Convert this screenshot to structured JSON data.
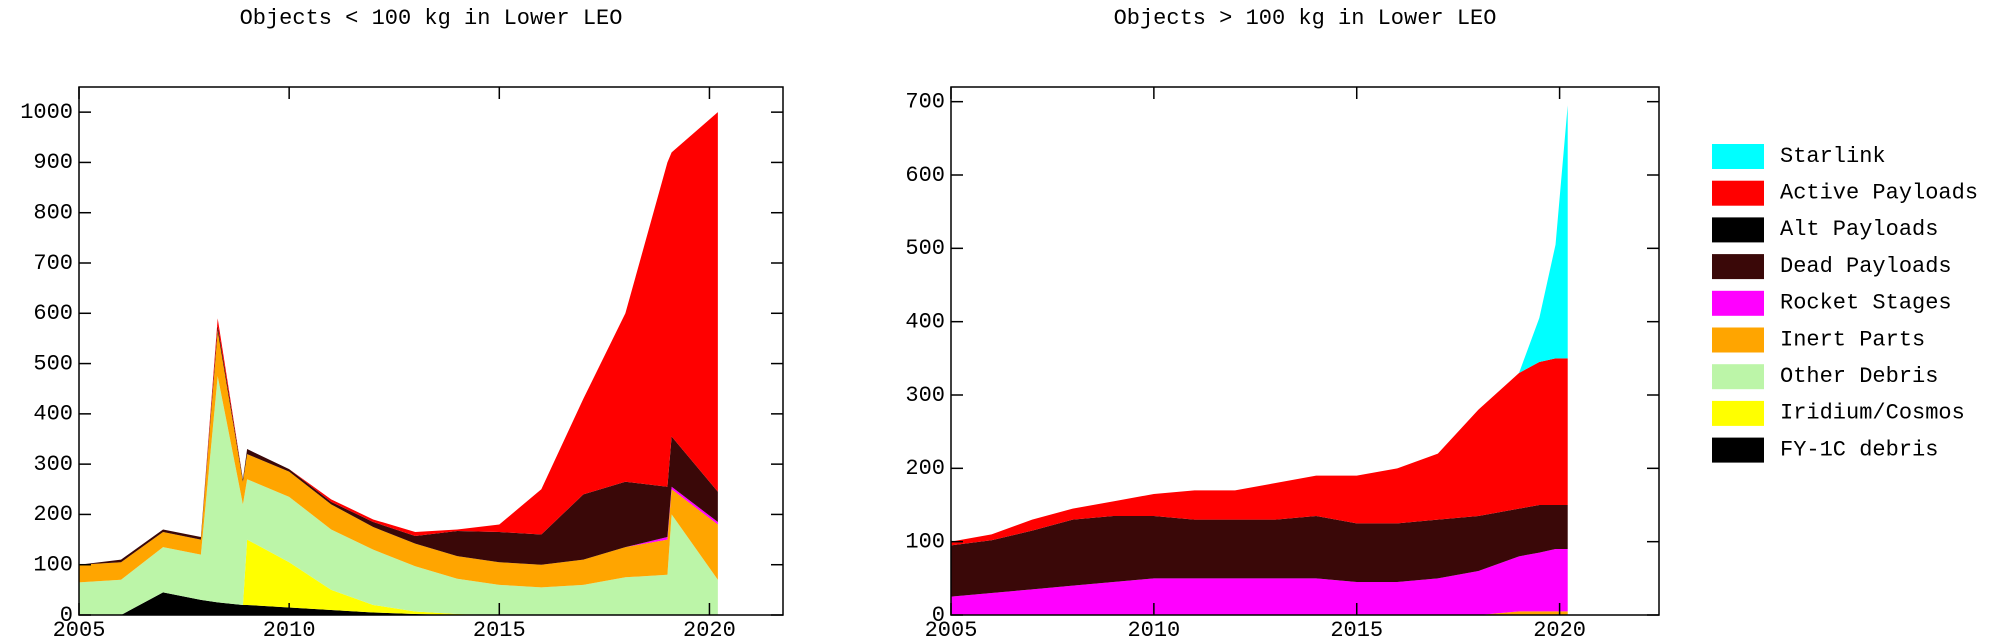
{
  "chart_data": [
    {
      "type": "stacked-area",
      "title": "Objects < 100 kg in Lower LEO",
      "x": [
        2005,
        2006,
        2007,
        2007.9,
        2008.3,
        2008.9,
        2009,
        2010,
        2011,
        2012,
        2013,
        2014,
        2015,
        2016,
        2017,
        2018,
        2019,
        2019.1,
        2020.2
      ],
      "xlim": [
        2005,
        2021.75
      ],
      "xticks": [
        2005,
        2010,
        2015,
        2020
      ],
      "ylim": [
        0,
        1050
      ],
      "yticks": [
        0,
        100,
        200,
        300,
        400,
        500,
        600,
        700,
        800,
        900,
        1000
      ],
      "series": [
        {
          "name": "FY-1C debris",
          "color": "#000000",
          "values": [
            0,
            0,
            45,
            30,
            25,
            20,
            20,
            15,
            10,
            5,
            2,
            0,
            0,
            0,
            0,
            0,
            0,
            0,
            0
          ]
        },
        {
          "name": "Iridium/Cosmos",
          "color": "#ffff00",
          "values": [
            0,
            0,
            0,
            0,
            0,
            0,
            130,
            90,
            40,
            15,
            5,
            2,
            0,
            0,
            0,
            0,
            0,
            0,
            0
          ]
        },
        {
          "name": "Other Debris",
          "color": "#bcf5a8",
          "values": [
            65,
            70,
            90,
            90,
            450,
            200,
            120,
            130,
            120,
            110,
            90,
            70,
            60,
            55,
            60,
            75,
            80,
            200,
            70
          ]
        },
        {
          "name": "Inert Parts",
          "color": "#ffa500",
          "values": [
            35,
            35,
            30,
            30,
            90,
            45,
            50,
            50,
            50,
            45,
            45,
            45,
            45,
            45,
            50,
            60,
            70,
            50,
            110
          ]
        },
        {
          "name": "Rocket Stages",
          "color": "#ff00ff",
          "values": [
            0,
            0,
            0,
            0,
            0,
            0,
            0,
            0,
            0,
            0,
            0,
            0,
            0,
            0,
            0,
            0,
            5,
            5,
            5
          ]
        },
        {
          "name": "Dead Payloads",
          "color": "#3a0808",
          "values": [
            0,
            5,
            5,
            5,
            10,
            5,
            10,
            5,
            5,
            10,
            15,
            50,
            60,
            60,
            130,
            130,
            100,
            100,
            60
          ]
        },
        {
          "name": "Active Payloads",
          "color": "#ff0000",
          "values": [
            0,
            0,
            0,
            0,
            15,
            0,
            0,
            0,
            5,
            5,
            8,
            3,
            15,
            90,
            190,
            335,
            645,
            565,
            755
          ]
        }
      ]
    },
    {
      "type": "stacked-area",
      "title": "Objects > 100 kg in Lower LEO",
      "x": [
        2005,
        2006,
        2007,
        2008,
        2009,
        2010,
        2011,
        2012,
        2013,
        2014,
        2015,
        2016,
        2017,
        2018,
        2019,
        2019.5,
        2019.9,
        2020.2
      ],
      "xlim": [
        2005,
        2022.45
      ],
      "xticks": [
        2005,
        2010,
        2015,
        2020
      ],
      "ylim": [
        0,
        720
      ],
      "yticks": [
        0,
        100,
        200,
        300,
        400,
        500,
        600,
        700
      ],
      "series": [
        {
          "name": "Inert Parts",
          "color": "#ffa500",
          "values": [
            0,
            0,
            0,
            0,
            0,
            0,
            0,
            0,
            0,
            0,
            0,
            0,
            0,
            0,
            5,
            5,
            5,
            5
          ]
        },
        {
          "name": "Rocket Stages",
          "color": "#ff00ff",
          "values": [
            25,
            30,
            35,
            40,
            45,
            50,
            50,
            50,
            50,
            50,
            45,
            45,
            50,
            60,
            75,
            80,
            85,
            85
          ]
        },
        {
          "name": "Dead Payloads",
          "color": "#3a0808",
          "values": [
            70,
            72,
            80,
            90,
            90,
            85,
            80,
            80,
            80,
            85,
            80,
            80,
            80,
            75,
            65,
            65,
            60,
            60
          ]
        },
        {
          "name": "Active Payloads",
          "color": "#ff0000",
          "values": [
            5,
            8,
            15,
            15,
            20,
            30,
            40,
            40,
            50,
            55,
            65,
            75,
            90,
            145,
            185,
            195,
            200,
            200
          ]
        },
        {
          "name": "Starlink",
          "color": "#00ffff",
          "values": [
            0,
            0,
            0,
            0,
            0,
            0,
            0,
            0,
            0,
            0,
            0,
            0,
            0,
            0,
            0,
            60,
            155,
            345
          ]
        }
      ]
    }
  ],
  "legend": [
    {
      "name": "Starlink",
      "color": "#00ffff"
    },
    {
      "name": "Active Payloads",
      "color": "#ff0000"
    },
    {
      "name": "Alt Payloads",
      "color": "#000000"
    },
    {
      "name": "Dead Payloads",
      "color": "#3a0808"
    },
    {
      "name": "Rocket Stages",
      "color": "#ff00ff"
    },
    {
      "name": "Inert Parts",
      "color": "#ffa500"
    },
    {
      "name": "Other Debris",
      "color": "#bcf5a8"
    },
    {
      "name": "Iridium/Cosmos",
      "color": "#ffff00"
    },
    {
      "name": "FY-1C debris",
      "color": "#000000"
    }
  ]
}
